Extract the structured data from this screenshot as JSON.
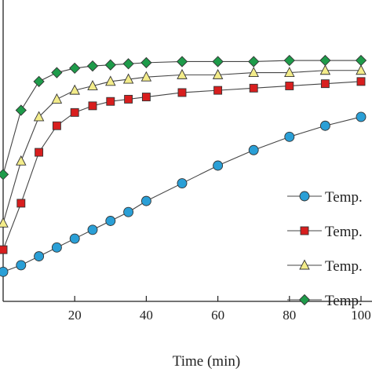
{
  "chart_data": {
    "type": "line",
    "xlabel": "Time (min)",
    "ylabel": "",
    "title": "",
    "xlim": [
      0,
      100
    ],
    "ylim": [
      0,
      100
    ],
    "x_ticks": [
      20,
      40,
      60,
      80,
      100
    ],
    "x_tick_labels": [
      "20",
      "40",
      "60",
      "80",
      "100"
    ],
    "grid": false,
    "legend_placement": "bottom-right",
    "x": [
      0,
      5,
      10,
      15,
      20,
      25,
      30,
      35,
      40,
      50,
      60,
      70,
      80,
      90,
      100
    ],
    "series": [
      {
        "name": "Temp.",
        "marker": "circle",
        "color": "#2a9fd6",
        "values": [
          2,
          5,
          9,
          13,
          17,
          21,
          25,
          29,
          34,
          42,
          50,
          57,
          63,
          68,
          72
        ]
      },
      {
        "name": "Temp.",
        "marker": "square",
        "color": "#d81e1e",
        "values": [
          12,
          33,
          56,
          68,
          74,
          77,
          79,
          80,
          81,
          83,
          84,
          85,
          86,
          87,
          88
        ]
      },
      {
        "name": "Temp.",
        "marker": "triangle",
        "color": "#f3ec8a",
        "values": [
          24,
          52,
          72,
          80,
          84,
          86,
          88,
          89,
          90,
          91,
          91,
          92,
          92,
          93,
          93
        ]
      },
      {
        "name": "Temp.",
        "marker": "diamond",
        "color": "#1e9b4a",
        "values": [
          46,
          75,
          88,
          92,
          94,
          95,
          95.5,
          96,
          96.5,
          97,
          97,
          97,
          97.5,
          97.5,
          97.5
        ]
      }
    ]
  }
}
